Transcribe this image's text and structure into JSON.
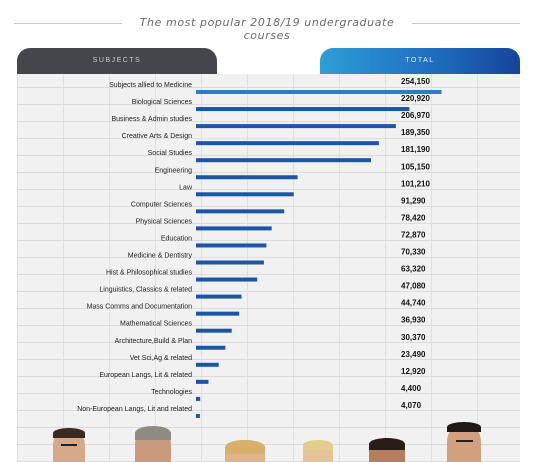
{
  "title": "The most popular 2018/19 undergraduate courses",
  "headers": {
    "subjects": "SUBJECTS",
    "total": "TOTAL"
  },
  "colors": {
    "bar": "#1a55a6",
    "bar_top": "#2a7ec6",
    "header_dark": "#45464b",
    "header_blue": "#1f6fc0"
  },
  "chart_data": {
    "type": "bar",
    "orientation": "horizontal",
    "title": "The most popular 2018/19 undergraduate courses",
    "categories": [
      "Subjects allied to Medicine",
      "Biological Sciences",
      "Business & Admin studies",
      "Creative Arts & Design",
      "Social Studies",
      "Engineering",
      "Law",
      "Computer Sciences",
      "Physical Sciences",
      "Education",
      "Medicine & Dentistry",
      "Hist & Philosophical studies",
      "Linguistics, Classics & related",
      "Mass Comms and Documentation",
      "Mathematical Sciences",
      "Architecture,Build & Plan",
      "Vet Sci,Ag & related",
      "European Langs, Lit & related",
      "Technologies",
      "Non-European Langs, Lit and related"
    ],
    "values": [
      254150,
      220920,
      206970,
      189350,
      181190,
      105150,
      101210,
      91290,
      78420,
      72870,
      70330,
      63320,
      47080,
      44740,
      36930,
      30370,
      23490,
      12920,
      4400,
      4070
    ],
    "value_labels": [
      "254,150",
      "220,920",
      "206,970",
      "189,350",
      "181,190",
      "105,150",
      "101,210",
      "91,290",
      "78,420",
      "72,870",
      "70,330",
      "63,320",
      "47,080",
      "44,740",
      "36,930",
      "30,370",
      "23,490",
      "12,920",
      "4,400",
      "4,070"
    ],
    "xlim": [
      0,
      260000
    ]
  }
}
